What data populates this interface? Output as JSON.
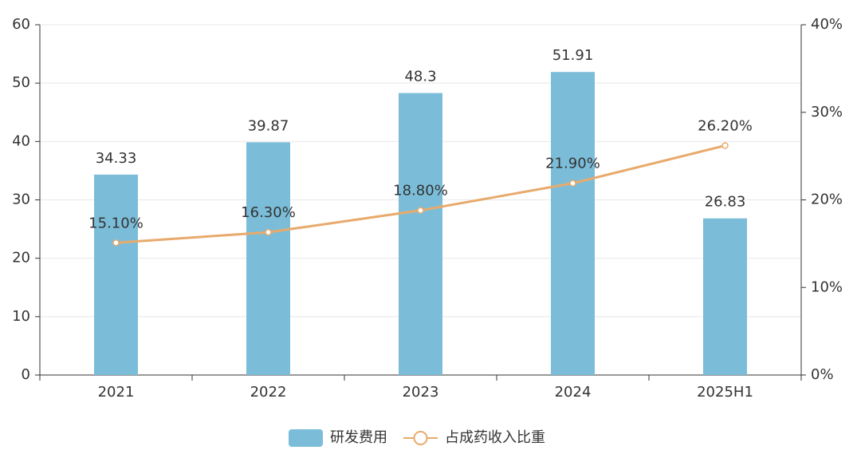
{
  "chart_data": {
    "type": "bar-line",
    "categories": [
      "2021",
      "2022",
      "2023",
      "2024",
      "2025H1"
    ],
    "series": [
      {
        "name": "研发费用",
        "type": "bar",
        "color": "#7bbdd9",
        "values": [
          34.33,
          39.87,
          48.3,
          51.91,
          26.83
        ]
      },
      {
        "name": "占成药收入比重",
        "type": "line",
        "axis": "y2",
        "color": "#e8aa6c",
        "values": [
          15.1,
          16.3,
          18.8,
          21.9,
          26.2
        ],
        "value_labels": [
          "15.10%",
          "16.30%",
          "18.80%",
          "21.90%",
          "26.20%"
        ]
      }
    ],
    "ylim": [
      0,
      60
    ],
    "yticks": [
      0,
      10,
      20,
      30,
      40,
      50,
      60
    ],
    "y2lim": [
      0,
      40
    ],
    "y2ticks": [
      {
        "value": 0,
        "label": "0%"
      },
      {
        "value": 10,
        "label": "10%"
      },
      {
        "value": 20,
        "label": "20%"
      },
      {
        "value": 30,
        "label": "30%"
      },
      {
        "value": 40,
        "label": "40%"
      }
    ],
    "grid": true,
    "legend": "bottom"
  }
}
